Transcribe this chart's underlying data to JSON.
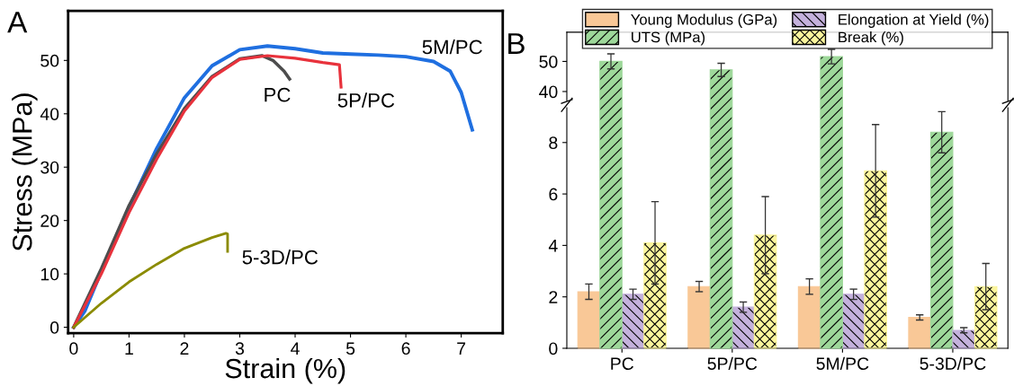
{
  "chart_data": [
    {
      "type": "line",
      "xlabel": "Strain (%)",
      "ylabel": "Stress (MPa)",
      "xlim": [
        -0.1,
        7.75
      ],
      "ylim": [
        -1.1,
        59.3
      ],
      "xticks": [
        0,
        1,
        2,
        3,
        4,
        5,
        6,
        7
      ],
      "yticks": [
        0,
        10,
        20,
        30,
        40,
        50
      ],
      "grid": false,
      "legend": false,
      "line_style": "solid",
      "marker": "none",
      "series": [
        {
          "name": "5M/PC",
          "color": "#1f6fe0",
          "x": [
            0,
            0.2,
            0.5,
            1,
            1.5,
            2,
            2.5,
            3,
            3.5,
            4,
            4.5,
            5,
            5.5,
            6,
            6.5,
            6.8,
            7,
            7.2
          ],
          "values": [
            0,
            3,
            10.5,
            22.5,
            33.5,
            43,
            49,
            52,
            52.7,
            52.2,
            51.4,
            51.2,
            51,
            50.7,
            49.8,
            48,
            44,
            37
          ]
        },
        {
          "name": "PC",
          "color": "#4d4d4d",
          "x": [
            0,
            0.5,
            1,
            1.5,
            2,
            2.5,
            3,
            3.4,
            3.6,
            3.8,
            3.9
          ],
          "values": [
            0,
            11,
            22.8,
            32.5,
            41,
            47,
            50.3,
            50.9,
            50,
            48,
            46.5
          ]
        },
        {
          "name": "5P/PC",
          "color": "#e8323c",
          "x": [
            0,
            0.5,
            1,
            1.5,
            2,
            2.5,
            3,
            3.5,
            4,
            4.5,
            4.8,
            4.83
          ],
          "values": [
            0,
            10,
            21.5,
            31.5,
            40.5,
            46.8,
            50.2,
            50.9,
            50.4,
            49.6,
            49.2,
            45
          ]
        },
        {
          "name": "5-3D/PC",
          "color": "#8b8b00",
          "x": [
            0,
            0.5,
            1,
            1.5,
            2,
            2.5,
            2.75,
            2.78,
            2.78
          ],
          "values": [
            0,
            4.5,
            8.5,
            11.8,
            14.8,
            16.8,
            17.6,
            17.5,
            14.2
          ]
        }
      ],
      "annotations": [
        "A"
      ]
    },
    {
      "type": "bar",
      "categories": [
        null,
        null,
        null,
        null
      ],
      "ylim": [
        37,
        59.7
      ],
      "yticks": [
        40,
        50
      ],
      "tick_labels": "y",
      "grid": false,
      "series": [
        {
          "color": "#f9c897",
          "values": [
            null,
            null,
            null,
            null
          ]
        },
        {
          "color": "#9ed89a",
          "values": [
            50,
            47.2,
            51.6,
            null
          ],
          "errors": [
            2.5,
            2.2,
            2.4,
            null
          ]
        },
        {
          "color": "#c4b1dc",
          "values": [
            null,
            null,
            null,
            null
          ]
        },
        {
          "color": "#fbf59c",
          "values": [
            null,
            null,
            null,
            null
          ]
        }
      ],
      "annotations": [
        "B"
      ]
    },
    {
      "type": "bar",
      "categories": [
        "PC",
        "5P/PC",
        "5M/PC",
        "5-3D/PC"
      ],
      "ylim": [
        0,
        9.35
      ],
      "yticks": [
        0,
        2,
        4,
        6,
        8
      ],
      "grid": false,
      "legend": "top",
      "series": [
        {
          "name": "Young Modulus (GPa)",
          "color": "#f9c897",
          "values": [
            2.2,
            2.4,
            2.4,
            1.2
          ],
          "errors": [
            0.3,
            0.2,
            0.3,
            0.1
          ]
        },
        {
          "name": "UTS (MPa)",
          "color": "#9ed89a",
          "values": [
            null,
            null,
            null,
            8.4
          ],
          "errors": [
            null,
            null,
            null,
            0.8
          ]
        },
        {
          "name": "Elongation at Yield (%)",
          "color": "#c4b1dc",
          "values": [
            2.1,
            1.6,
            2.1,
            0.7
          ],
          "errors": [
            0.2,
            0.2,
            0.2,
            0.1
          ]
        },
        {
          "name": "Break (%)",
          "color": "#fbf59c",
          "values": [
            4.1,
            4.4,
            6.9,
            2.4
          ],
          "errors": [
            1.6,
            1.5,
            1.8,
            0.9
          ]
        }
      ]
    }
  ]
}
